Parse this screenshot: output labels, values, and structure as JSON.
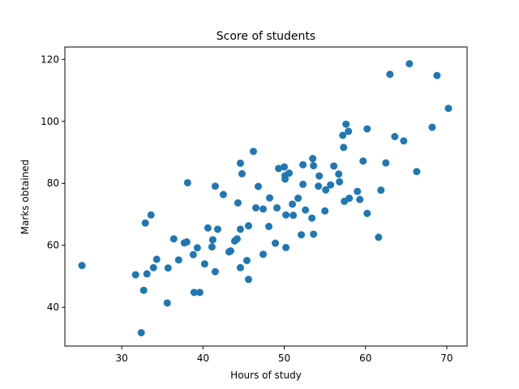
{
  "chart_data": {
    "type": "scatter",
    "title": "Score of students",
    "xlabel": "Hours of study",
    "ylabel": "Marks obtained",
    "xlim": [
      23.0,
      72.5
    ],
    "ylim": [
      27.5,
      124.0
    ],
    "xticks": [
      30,
      40,
      50,
      60,
      70
    ],
    "yticks": [
      40,
      60,
      80,
      100,
      120
    ],
    "grid": false,
    "color": "#1f77b4",
    "points": [
      [
        25.1,
        53.5
      ],
      [
        31.7,
        50.5
      ],
      [
        32.4,
        31.8
      ],
      [
        32.7,
        45.5
      ],
      [
        32.9,
        67.2
      ],
      [
        33.1,
        50.8
      ],
      [
        33.6,
        69.8
      ],
      [
        33.9,
        52.8
      ],
      [
        34.3,
        55.5
      ],
      [
        35.6,
        41.4
      ],
      [
        35.7,
        52.7
      ],
      [
        36.4,
        62.1
      ],
      [
        37.0,
        55.3
      ],
      [
        37.7,
        60.8
      ],
      [
        38.0,
        61.1
      ],
      [
        38.1,
        80.2
      ],
      [
        38.8,
        57.0
      ],
      [
        38.9,
        44.8
      ],
      [
        39.3,
        59.2
      ],
      [
        39.6,
        44.8
      ],
      [
        40.2,
        54.0
      ],
      [
        40.6,
        65.6
      ],
      [
        41.1,
        59.5
      ],
      [
        41.2,
        61.8
      ],
      [
        41.5,
        79.1
      ],
      [
        41.5,
        51.5
      ],
      [
        41.8,
        65.2
      ],
      [
        42.5,
        76.4
      ],
      [
        43.2,
        57.9
      ],
      [
        43.4,
        58.2
      ],
      [
        43.9,
        61.4
      ],
      [
        44.2,
        62.1
      ],
      [
        44.3,
        73.7
      ],
      [
        44.6,
        52.8
      ],
      [
        44.6,
        65.2
      ],
      [
        44.6,
        86.5
      ],
      [
        44.8,
        83.1
      ],
      [
        45.4,
        55.1
      ],
      [
        45.6,
        66.3
      ],
      [
        45.6,
        49.0
      ],
      [
        46.2,
        90.3
      ],
      [
        46.5,
        72.1
      ],
      [
        46.8,
        79.0
      ],
      [
        47.4,
        71.7
      ],
      [
        47.4,
        57.1
      ],
      [
        48.1,
        66.1
      ],
      [
        48.2,
        75.3
      ],
      [
        48.9,
        60.7
      ],
      [
        49.1,
        72.1
      ],
      [
        49.3,
        84.8
      ],
      [
        50.0,
        85.3
      ],
      [
        50.1,
        82.5
      ],
      [
        50.1,
        81.4
      ],
      [
        50.2,
        59.3
      ],
      [
        50.2,
        69.8
      ],
      [
        50.6,
        83.3
      ],
      [
        51.0,
        73.3
      ],
      [
        51.1,
        69.7
      ],
      [
        51.7,
        75.2
      ],
      [
        52.1,
        63.4
      ],
      [
        52.3,
        79.7
      ],
      [
        52.3,
        86.0
      ],
      [
        52.6,
        71.4
      ],
      [
        53.4,
        68.8
      ],
      [
        53.5,
        88.0
      ],
      [
        53.6,
        85.7
      ],
      [
        53.6,
        63.6
      ],
      [
        54.2,
        79.1
      ],
      [
        54.3,
        82.4
      ],
      [
        55.0,
        71.1
      ],
      [
        55.1,
        77.9
      ],
      [
        55.7,
        79.5
      ],
      [
        56.1,
        85.6
      ],
      [
        56.7,
        83.0
      ],
      [
        56.8,
        80.5
      ],
      [
        57.2,
        95.5
      ],
      [
        57.3,
        91.6
      ],
      [
        57.4,
        74.2
      ],
      [
        57.6,
        99.1
      ],
      [
        57.9,
        96.8
      ],
      [
        58.0,
        75.2
      ],
      [
        59.0,
        77.4
      ],
      [
        59.3,
        74.8
      ],
      [
        59.7,
        87.2
      ],
      [
        60.2,
        97.6
      ],
      [
        60.2,
        70.3
      ],
      [
        61.6,
        62.6
      ],
      [
        61.9,
        77.8
      ],
      [
        62.5,
        86.6
      ],
      [
        63.0,
        115.2
      ],
      [
        63.6,
        95.1
      ],
      [
        64.7,
        93.7
      ],
      [
        65.4,
        118.6
      ],
      [
        66.3,
        83.8
      ],
      [
        68.2,
        98.1
      ],
      [
        68.8,
        114.8
      ],
      [
        70.2,
        104.2
      ]
    ]
  }
}
